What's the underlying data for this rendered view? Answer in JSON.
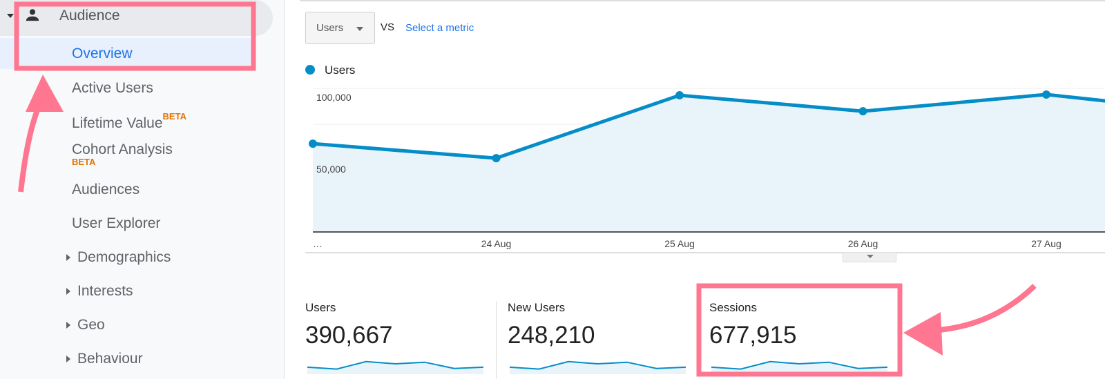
{
  "sidebar": {
    "section": "Audience",
    "active": "Overview",
    "items": [
      {
        "label": "Active Users"
      },
      {
        "label": "Lifetime Value",
        "badge": "BETA"
      },
      {
        "label": "Cohort Analysis",
        "badge": "BETA"
      },
      {
        "label": "Audiences"
      },
      {
        "label": "User Explorer"
      }
    ],
    "groups": [
      "Demographics",
      "Interests",
      "Geo",
      "Behaviour"
    ]
  },
  "toolbar": {
    "metric": "Users",
    "vs": "VS",
    "select_metric": "Select a metric"
  },
  "colors": {
    "series": "#058dc7",
    "highlight": "#ff7690",
    "active": "#1a73e8",
    "beta": "#e37400"
  },
  "chart_data": {
    "type": "area",
    "legend": "Users",
    "legend_placement": "top-left",
    "x_labels": [
      "…",
      "24 Aug",
      "25 Aug",
      "26 Aug",
      "27 Aug"
    ],
    "y_ticks": [
      "100,000",
      "50,000"
    ],
    "y_tick_values": [
      100000,
      50000
    ],
    "ylim": [
      0,
      100000
    ],
    "grid": true,
    "series": [
      {
        "name": "Users",
        "values": [
          61500,
          51400,
          95200,
          84100,
          95700,
          82000
        ]
      }
    ]
  },
  "kpis": [
    {
      "label": "Users",
      "value": "390,667",
      "spark": [
        0.45,
        0.3,
        0.9,
        0.72,
        0.85,
        0.35,
        0.45
      ]
    },
    {
      "label": "New Users",
      "value": "248,210",
      "spark": [
        0.45,
        0.3,
        0.9,
        0.72,
        0.85,
        0.35,
        0.45
      ]
    },
    {
      "label": "Sessions",
      "value": "677,915",
      "spark": [
        0.45,
        0.3,
        0.9,
        0.72,
        0.85,
        0.35,
        0.45
      ]
    }
  ]
}
